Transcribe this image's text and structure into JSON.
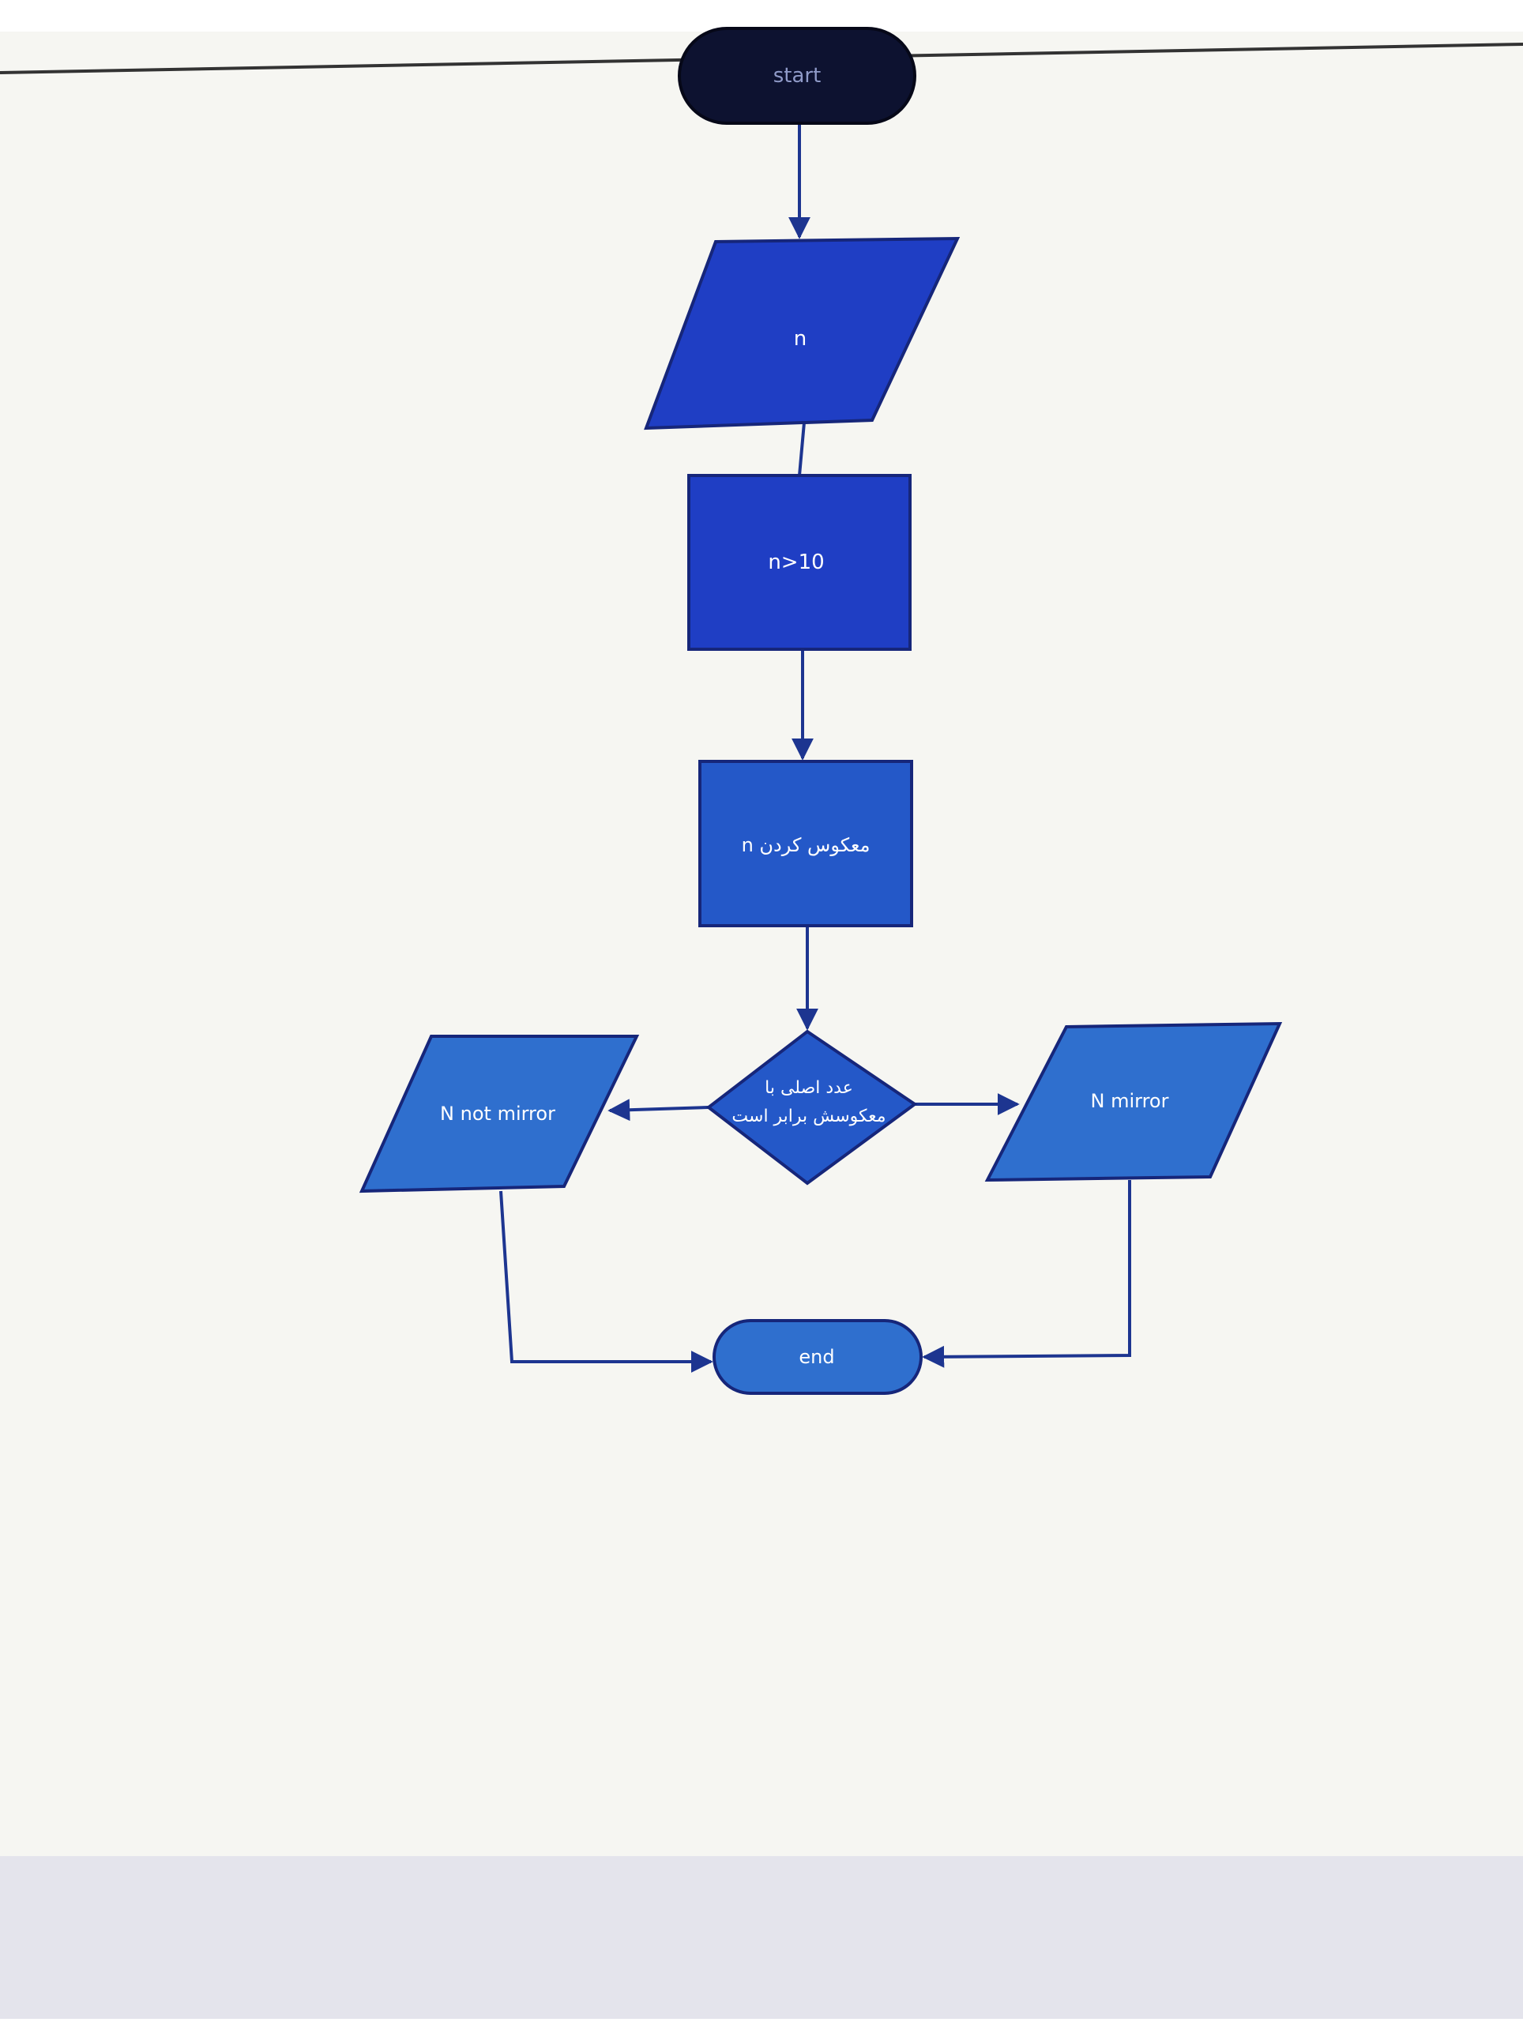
{
  "diagram": {
    "start_label": "start",
    "input_label": "n",
    "condition_label": "n>10",
    "reverse_label": "معکوس کردن n",
    "decision_label_line1": "عدد اصلی با",
    "decision_label_line2": "معکوسش برابر است",
    "no_output_label": "N not mirror",
    "yes_output_label": "N mirror",
    "end_label": "end"
  },
  "colors": {
    "page_background": "#ffffff",
    "paper": "#f6f6f2",
    "terminal_start": "#0d1230",
    "shape_dark_blue": "#1f3ec4",
    "shape_mid_blue": "#2458c8",
    "shape_light_blue": "#2f6fce",
    "shape_stroke": "#16267a",
    "arrow": "#1d3590",
    "label_text": "#ffffff"
  }
}
